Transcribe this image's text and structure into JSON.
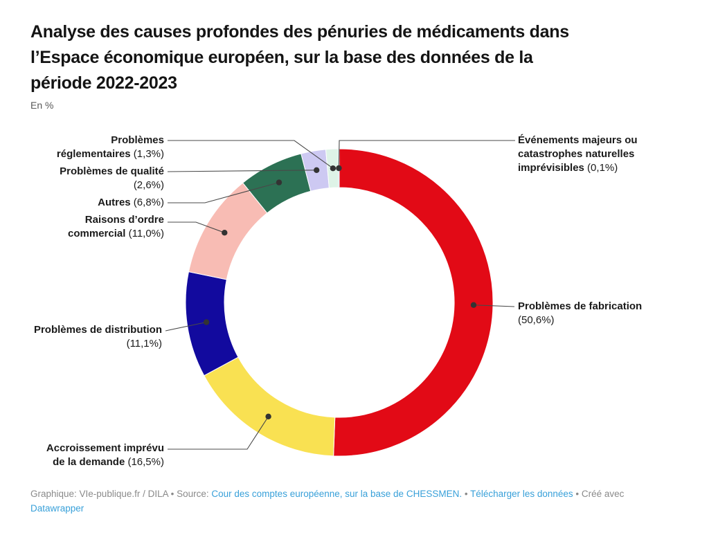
{
  "title_lines": [
    "Analyse des causes profondes des pénuries de médicaments dans",
    "l’Espace économique européen, sur la base des données de la",
    "période 2022-2023"
  ],
  "subtitle": "En %",
  "chart_data": {
    "type": "pie",
    "donut": true,
    "inner_radius_ratio": 0.75,
    "title": "Analyse des causes profondes des pénuries de médicaments dans l’Espace économique européen, sur la base des données de la période 2022-2023",
    "subtitle": "En %",
    "unit": "%",
    "start_angle_deg": 0,
    "direction": "clockwise",
    "legend_position": "none (direct labels with leader lines)",
    "segments": [
      {
        "key": "fabrication",
        "label": "Problèmes de fabrication",
        "value": 50.6,
        "display": "50,6%",
        "color": "#e20a16"
      },
      {
        "key": "demande",
        "label": "Accroissement imprévu de la demande",
        "value": 16.5,
        "display": "16,5%",
        "color": "#f9e152"
      },
      {
        "key": "distribution",
        "label": "Problèmes de distribution",
        "value": 11.1,
        "display": "11,1%",
        "color": "#120a9e"
      },
      {
        "key": "commercial",
        "label": "Raisons d’ordre commercial",
        "value": 11.0,
        "display": "11,0%",
        "color": "#f8bcb4"
      },
      {
        "key": "autres",
        "label": "Autres",
        "value": 6.8,
        "display": "6,8%",
        "color": "#2c7154"
      },
      {
        "key": "qualite",
        "label": "Problèmes de qualité",
        "value": 2.6,
        "display": "2,6%",
        "color": "#cdc9f2"
      },
      {
        "key": "reglementaires",
        "label": "Problèmes réglementaires",
        "value": 1.3,
        "display": "1,3%",
        "color": "#def3e7"
      },
      {
        "key": "evenements",
        "label": "Événements majeurs ou catastrophes naturelles imprévisibles",
        "value": 0.1,
        "display": "0,1%",
        "color": "#d8edf5"
      }
    ]
  },
  "labels": {
    "reglementaires": {
      "l1": "Problèmes",
      "l2b": "réglementaires",
      "l2r": " (1,3%)"
    },
    "qualite": {
      "l1": "Problèmes de qualité",
      "l2r": "(2,6%)"
    },
    "autres": {
      "l1b": "Autres",
      "l1r": " (6,8%)"
    },
    "commercial": {
      "l1": "Raisons d’ordre",
      "l2b": "commercial",
      "l2r": " (11,0%)"
    },
    "distribution": {
      "l1": "Problèmes de distribution",
      "l2r": "(11,1%)"
    },
    "demande": {
      "l1": "Accroissement imprévu",
      "l2b": "de la demande",
      "l2r": " (16,5%)"
    },
    "fabrication": {
      "l1": "Problèmes de fabrication",
      "l2r": "(50,6%)"
    },
    "evenements": {
      "l1": "Événements majeurs ou",
      "l2": "catastrophes naturelles",
      "l3b": "imprévisibles",
      "l3r": " (0,1%)"
    }
  },
  "footer": {
    "prefix": "Graphique: VIe-publique.fr / DILA",
    "sep1": " • ",
    "source_label": "Source: ",
    "source_link": "Cour des comptes européenne, sur la base de CHESSMEN.",
    "sep2": "  • ",
    "download_link": "Télécharger les données",
    "sep3": " • ",
    "created_text": "Créé avec ",
    "datawrapper_link": "Datawrapper"
  },
  "colors": {
    "link_blue": "#38a0d9",
    "footer_gray": "#8a8a8a",
    "leader_line": "#494949",
    "leader_dot": "#333333",
    "title_text": "#141414"
  }
}
